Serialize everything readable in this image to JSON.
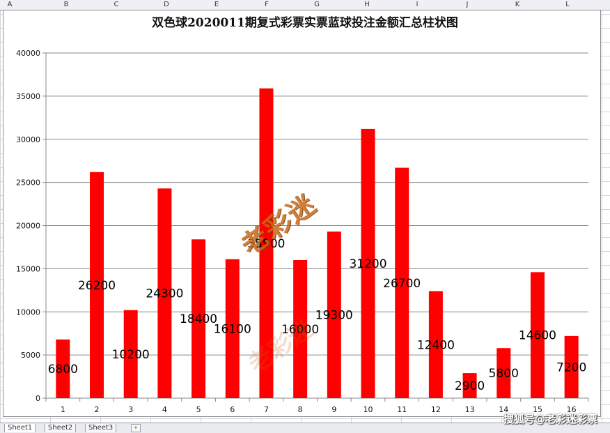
{
  "spreadsheet": {
    "column_headers": [
      "A",
      "B",
      "C",
      "D",
      "E",
      "F",
      "G",
      "H",
      "I",
      "J",
      "K",
      "L"
    ],
    "sheet_tabs": [
      "Sheet1",
      "Sheet2",
      "Sheet3"
    ]
  },
  "chart_data": {
    "type": "bar",
    "title": "双色球2020011期复式彩票实票蓝球投注金额汇总柱状图",
    "categories": [
      "1",
      "2",
      "3",
      "4",
      "5",
      "6",
      "7",
      "8",
      "9",
      "10",
      "11",
      "12",
      "13",
      "14",
      "15",
      "16"
    ],
    "values": [
      6800,
      26200,
      10200,
      24300,
      18400,
      16100,
      35900,
      16000,
      19300,
      31200,
      26700,
      12400,
      2900,
      5800,
      14600,
      7200
    ],
    "data_labels": [
      "6800",
      "26200",
      "10200",
      "24300",
      "18400",
      "16100",
      "35900",
      "16000",
      "19300",
      "31200",
      "26700",
      "12400",
      "2900",
      "5800",
      "14600",
      "7200"
    ],
    "ylim": [
      0,
      40000
    ],
    "yticks": [
      "0",
      "5000",
      "10000",
      "15000",
      "20000",
      "25000",
      "30000",
      "35000",
      "40000"
    ],
    "bar_color": "#ff0000",
    "grid": true,
    "legend": "none"
  },
  "watermark": {
    "text": "搜狐号@老彩迷彩票",
    "logo_text": "老彩迷"
  }
}
